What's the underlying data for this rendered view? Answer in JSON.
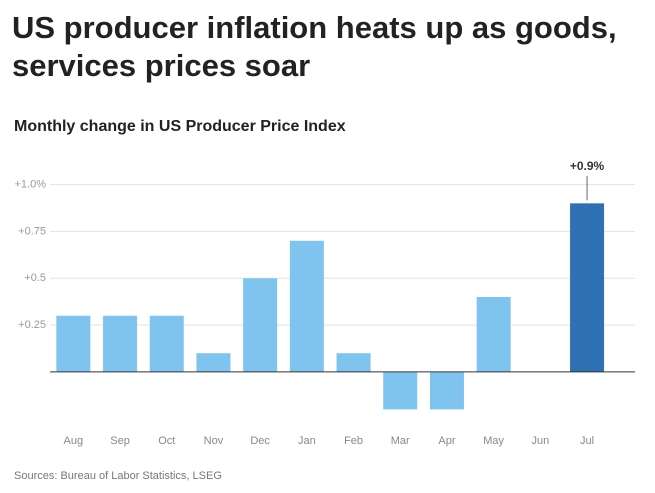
{
  "chart_data": {
    "type": "bar",
    "title": "US producer inflation heats up as goods, services prices soar",
    "subtitle": "Monthly change in US Producer Price Index",
    "source": "Sources: Bureau of Labor Statistics, LSEG",
    "categories": [
      "Aug",
      "Sep",
      "Oct",
      "Nov",
      "Dec",
      "Jan",
      "Feb",
      "Mar",
      "Apr",
      "May",
      "Jun",
      "Jul"
    ],
    "values": [
      0.3,
      0.3,
      0.3,
      0.1,
      0.5,
      0.7,
      0.1,
      -0.2,
      -0.2,
      0.4,
      0,
      0.9
    ],
    "value_labels": [
      null,
      null,
      null,
      null,
      null,
      null,
      null,
      null,
      null,
      null,
      null,
      "+0.9%"
    ],
    "colors": [
      "#7fc4ef",
      "#7fc4ef",
      "#7fc4ef",
      "#7fc4ef",
      "#7fc4ef",
      "#7fc4ef",
      "#7fc4ef",
      "#7fc4ef",
      "#7fc4ef",
      "#7fc4ef",
      "#7fc4ef",
      "#2e72b3"
    ],
    "ylim": [
      -0.2,
      1.0
    ],
    "yticks": [
      {
        "value": 0.25,
        "label": "+0.25"
      },
      {
        "value": 0.5,
        "label": "+0.5"
      },
      {
        "value": 0.75,
        "label": "+0.75"
      },
      {
        "value": 1.0,
        "label": "+1.0%"
      }
    ],
    "grid": true
  }
}
